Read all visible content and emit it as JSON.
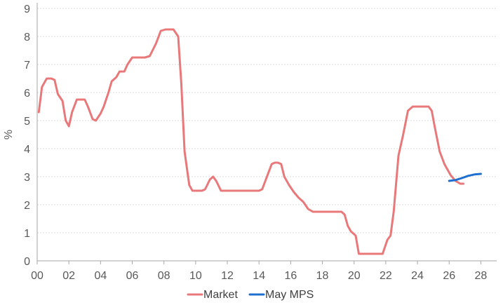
{
  "chart_data": {
    "type": "line",
    "ylabel": "%",
    "xlabel": "",
    "ylim": [
      0,
      9
    ],
    "xlim": [
      0,
      29
    ],
    "yticks": [
      0,
      1,
      2,
      3,
      4,
      5,
      6,
      7,
      8,
      9
    ],
    "yticks_labels": [
      "0",
      "1",
      "2",
      "3",
      "4",
      "5",
      "6",
      "7",
      "8",
      "9"
    ],
    "xticks": [
      0,
      2,
      4,
      6,
      8,
      10,
      12,
      14,
      16,
      18,
      20,
      22,
      24,
      26,
      28
    ],
    "xticks_labels": [
      "00",
      "02",
      "04",
      "06",
      "08",
      "10",
      "12",
      "14",
      "16",
      "18",
      "20",
      "22",
      "24",
      "26",
      "28"
    ],
    "grid": "horizontal",
    "legend_position": "bottom",
    "series": [
      {
        "name": "Market",
        "color": "#e8787a",
        "x": [
          0.1,
          0.3,
          0.6,
          0.9,
          1.1,
          1.3,
          1.6,
          1.8,
          2.0,
          2.2,
          2.5,
          2.7,
          3.0,
          3.2,
          3.5,
          3.7,
          4.0,
          4.2,
          4.5,
          4.7,
          5.0,
          5.2,
          5.5,
          5.7,
          6.0,
          6.2,
          6.4,
          6.8,
          7.1,
          7.5,
          7.8,
          8.1,
          8.4,
          8.6,
          8.9,
          9.1,
          9.3,
          9.6,
          9.8,
          10.1,
          10.4,
          10.6,
          10.9,
          11.1,
          11.3,
          11.6,
          12.0,
          12.5,
          13.0,
          13.5,
          14.0,
          14.2,
          14.5,
          14.8,
          15.0,
          15.2,
          15.4,
          15.6,
          15.9,
          16.2,
          16.5,
          16.8,
          17.1,
          17.4,
          17.7,
          18.0,
          18.3,
          18.6,
          18.9,
          19.2,
          19.4,
          19.6,
          19.8,
          20.1,
          20.3,
          20.6,
          20.9,
          21.2,
          21.5,
          21.8,
          22.1,
          22.3,
          22.5,
          22.8,
          23.1,
          23.4,
          23.7,
          24.0,
          24.4,
          24.7,
          24.9,
          25.1,
          25.4,
          25.7,
          26.1,
          26.4,
          26.7,
          26.9
        ],
        "values": [
          5.3,
          6.2,
          6.5,
          6.5,
          6.45,
          5.95,
          5.7,
          5.0,
          4.8,
          5.3,
          5.75,
          5.75,
          5.75,
          5.5,
          5.05,
          5.0,
          5.25,
          5.5,
          6.0,
          6.4,
          6.55,
          6.75,
          6.75,
          7.0,
          7.25,
          7.25,
          7.25,
          7.25,
          7.3,
          7.75,
          8.2,
          8.25,
          8.25,
          8.25,
          8.0,
          6.3,
          3.9,
          2.7,
          2.5,
          2.5,
          2.5,
          2.55,
          2.9,
          3.0,
          2.85,
          2.5,
          2.5,
          2.5,
          2.5,
          2.5,
          2.5,
          2.55,
          3.0,
          3.45,
          3.5,
          3.5,
          3.45,
          3.0,
          2.7,
          2.45,
          2.25,
          2.1,
          1.85,
          1.75,
          1.75,
          1.75,
          1.75,
          1.75,
          1.75,
          1.75,
          1.65,
          1.25,
          1.05,
          0.9,
          0.25,
          0.25,
          0.25,
          0.25,
          0.25,
          0.25,
          0.75,
          0.9,
          1.75,
          3.75,
          4.5,
          5.35,
          5.5,
          5.5,
          5.5,
          5.5,
          5.35,
          4.75,
          3.9,
          3.45,
          3.05,
          2.85,
          2.75,
          2.75
        ]
      },
      {
        "name": "May MPS",
        "color": "#1f6fcf",
        "x": [
          26.0,
          26.4,
          26.8,
          27.2,
          27.6,
          28.0
        ],
        "values": [
          2.85,
          2.88,
          2.95,
          3.03,
          3.08,
          3.1
        ]
      }
    ]
  }
}
